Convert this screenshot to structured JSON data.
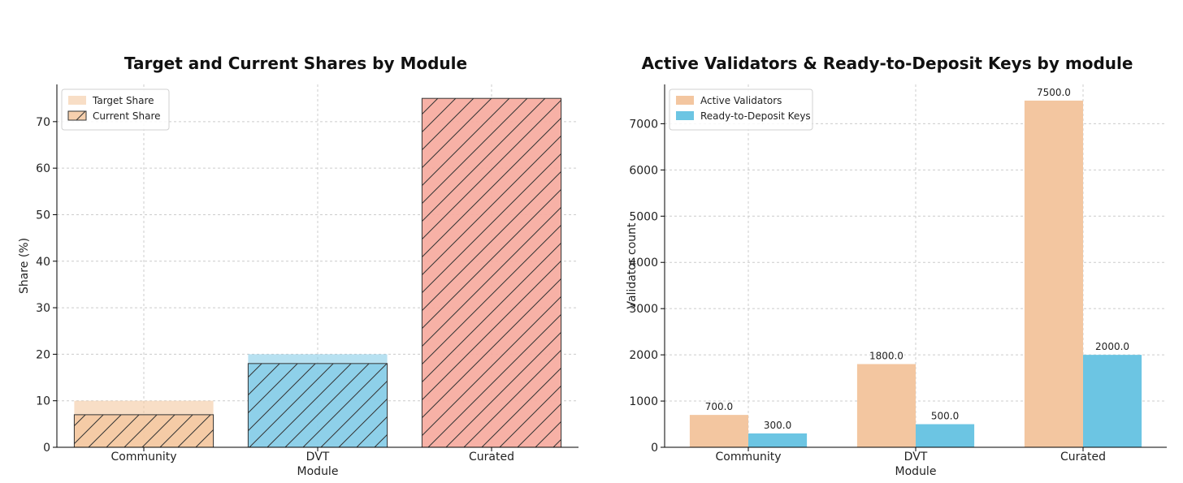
{
  "chart_data": [
    {
      "type": "bar",
      "title": "Target and Current Shares by Module",
      "xlabel": "Module",
      "ylabel": "Share (%)",
      "categories": [
        "Community",
        "DVT",
        "Curated"
      ],
      "ylim": [
        0,
        78
      ],
      "yticks": [
        0,
        10,
        20,
        30,
        40,
        50,
        60,
        70
      ],
      "grid": true,
      "legend_position": "top-left",
      "bar_colors": [
        "#f4c8a0",
        "#87cde8",
        "#f6aba0"
      ],
      "series": [
        {
          "name": "Target Share",
          "values": [
            10,
            20,
            75
          ],
          "style": "light"
        },
        {
          "name": "Current Share",
          "values": [
            7,
            18,
            75
          ],
          "style": "hatched"
        }
      ]
    },
    {
      "type": "bar",
      "title": "Active Validators & Ready-to-Deposit Keys by module",
      "xlabel": "Module",
      "ylabel": "Validator count",
      "categories": [
        "Community",
        "DVT",
        "Curated"
      ],
      "ylim": [
        0,
        7850
      ],
      "yticks": [
        0,
        1000,
        2000,
        3000,
        4000,
        5000,
        6000,
        7000
      ],
      "grid": true,
      "legend_position": "top-left",
      "series": [
        {
          "name": "Active Validators",
          "values": [
            700,
            1800,
            7500
          ],
          "color": "#f3c6a0"
        },
        {
          "name": "Ready-to-Deposit Keys",
          "values": [
            300,
            500,
            2000
          ],
          "color": "#6cc5e3"
        }
      ],
      "data_labels": [
        [
          "700.0",
          "1800.0",
          "7500.0"
        ],
        [
          "300.0",
          "500.0",
          "2000.0"
        ]
      ]
    }
  ]
}
